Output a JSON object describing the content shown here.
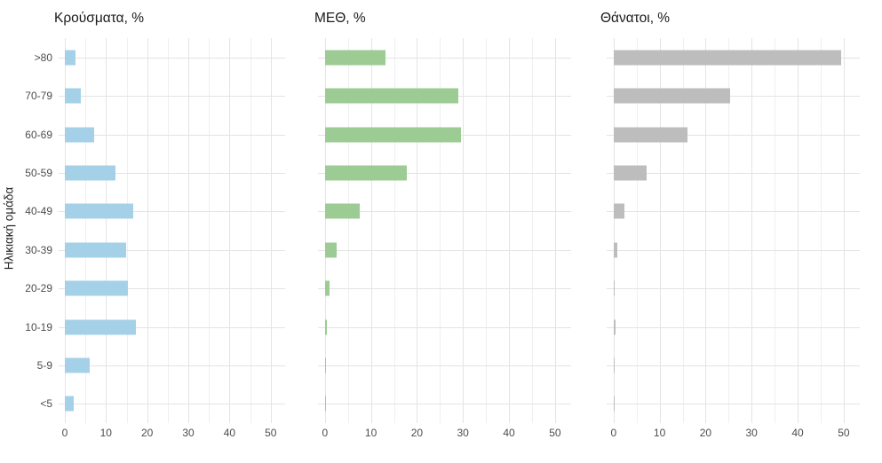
{
  "figure": {
    "y_axis_title": "Ηλικιακή ομάδα",
    "age_groups": [
      ">80",
      "70-79",
      "60-69",
      "50-59",
      "40-49",
      "30-39",
      "20-29",
      "10-19",
      "5-9",
      "<5"
    ],
    "x_tick_labels": [
      "0",
      "10",
      "20",
      "30",
      "40",
      "50"
    ]
  },
  "chart_data": [
    {
      "type": "bar",
      "orientation": "horizontal",
      "title": "Κρούσματα, %",
      "color": "#a5d1e8",
      "categories": [
        ">80",
        "70-79",
        "60-69",
        "50-59",
        "40-49",
        "30-39",
        "20-29",
        "10-19",
        "5-9",
        "<5"
      ],
      "values": [
        2.6,
        3.8,
        7.2,
        12.2,
        16.5,
        14.8,
        15.3,
        17.3,
        6.1,
        2.2
      ],
      "xlabel": "",
      "ylabel": "Ηλικιακή ομάδα",
      "xlim": [
        0,
        52
      ],
      "x_ticks": [
        0,
        10,
        20,
        30,
        40,
        50
      ],
      "grid": true,
      "legend": false
    },
    {
      "type": "bar",
      "orientation": "horizontal",
      "title": "ΜΕΘ, %",
      "color": "#9ccb93",
      "categories": [
        ">80",
        "70-79",
        "60-69",
        "50-59",
        "40-49",
        "30-39",
        "20-29",
        "10-19",
        "5-9",
        "<5"
      ],
      "values": [
        13.1,
        29.0,
        29.6,
        17.7,
        7.5,
        2.6,
        1.1,
        0.5,
        0.2,
        0.3
      ],
      "xlabel": "",
      "ylabel": "",
      "xlim": [
        0,
        52
      ],
      "x_ticks": [
        0,
        10,
        20,
        30,
        40,
        50
      ],
      "grid": true,
      "legend": false
    },
    {
      "type": "bar",
      "orientation": "horizontal",
      "title": "Θάνατοι, %",
      "color": "#bdbdbd",
      "categories": [
        ">80",
        "70-79",
        "60-69",
        "50-59",
        "40-49",
        "30-39",
        "20-29",
        "10-19",
        "5-9",
        "<5"
      ],
      "values": [
        49.4,
        25.4,
        16.0,
        7.1,
        2.3,
        0.8,
        0.25,
        0.35,
        0.05,
        0.2
      ],
      "xlabel": "",
      "ylabel": "",
      "xlim": [
        0,
        52
      ],
      "x_ticks": [
        0,
        10,
        20,
        30,
        40,
        50
      ],
      "grid": true,
      "legend": false
    }
  ]
}
